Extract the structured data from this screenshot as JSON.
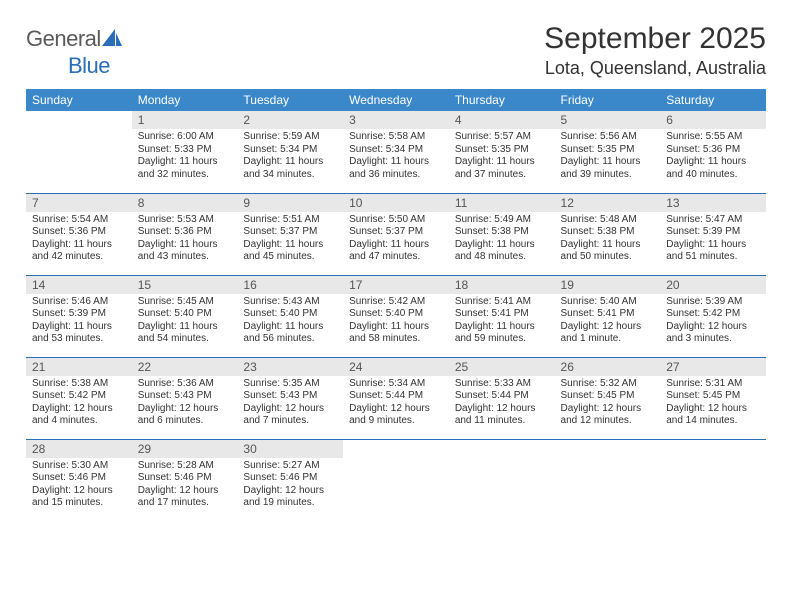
{
  "logo": {
    "textDark": "General",
    "textBlue": "Blue"
  },
  "title": "September 2025",
  "location": "Lota, Queensland, Australia",
  "colors": {
    "header_bg": "#3a87c9",
    "header_text": "#ffffff",
    "cell_border": "#2a6db8",
    "daynum_bg": "#e8e8e8",
    "logo_blue": "#2a6db8",
    "logo_gray": "#5a5a5a"
  },
  "weekdays": [
    "Sunday",
    "Monday",
    "Tuesday",
    "Wednesday",
    "Thursday",
    "Friday",
    "Saturday"
  ],
  "weeks": [
    [
      null,
      {
        "n": "1",
        "sr": "Sunrise: 6:00 AM",
        "ss": "Sunset: 5:33 PM",
        "dl1": "Daylight: 11 hours",
        "dl2": "and 32 minutes."
      },
      {
        "n": "2",
        "sr": "Sunrise: 5:59 AM",
        "ss": "Sunset: 5:34 PM",
        "dl1": "Daylight: 11 hours",
        "dl2": "and 34 minutes."
      },
      {
        "n": "3",
        "sr": "Sunrise: 5:58 AM",
        "ss": "Sunset: 5:34 PM",
        "dl1": "Daylight: 11 hours",
        "dl2": "and 36 minutes."
      },
      {
        "n": "4",
        "sr": "Sunrise: 5:57 AM",
        "ss": "Sunset: 5:35 PM",
        "dl1": "Daylight: 11 hours",
        "dl2": "and 37 minutes."
      },
      {
        "n": "5",
        "sr": "Sunrise: 5:56 AM",
        "ss": "Sunset: 5:35 PM",
        "dl1": "Daylight: 11 hours",
        "dl2": "and 39 minutes."
      },
      {
        "n": "6",
        "sr": "Sunrise: 5:55 AM",
        "ss": "Sunset: 5:36 PM",
        "dl1": "Daylight: 11 hours",
        "dl2": "and 40 minutes."
      }
    ],
    [
      {
        "n": "7",
        "sr": "Sunrise: 5:54 AM",
        "ss": "Sunset: 5:36 PM",
        "dl1": "Daylight: 11 hours",
        "dl2": "and 42 minutes."
      },
      {
        "n": "8",
        "sr": "Sunrise: 5:53 AM",
        "ss": "Sunset: 5:36 PM",
        "dl1": "Daylight: 11 hours",
        "dl2": "and 43 minutes."
      },
      {
        "n": "9",
        "sr": "Sunrise: 5:51 AM",
        "ss": "Sunset: 5:37 PM",
        "dl1": "Daylight: 11 hours",
        "dl2": "and 45 minutes."
      },
      {
        "n": "10",
        "sr": "Sunrise: 5:50 AM",
        "ss": "Sunset: 5:37 PM",
        "dl1": "Daylight: 11 hours",
        "dl2": "and 47 minutes."
      },
      {
        "n": "11",
        "sr": "Sunrise: 5:49 AM",
        "ss": "Sunset: 5:38 PM",
        "dl1": "Daylight: 11 hours",
        "dl2": "and 48 minutes."
      },
      {
        "n": "12",
        "sr": "Sunrise: 5:48 AM",
        "ss": "Sunset: 5:38 PM",
        "dl1": "Daylight: 11 hours",
        "dl2": "and 50 minutes."
      },
      {
        "n": "13",
        "sr": "Sunrise: 5:47 AM",
        "ss": "Sunset: 5:39 PM",
        "dl1": "Daylight: 11 hours",
        "dl2": "and 51 minutes."
      }
    ],
    [
      {
        "n": "14",
        "sr": "Sunrise: 5:46 AM",
        "ss": "Sunset: 5:39 PM",
        "dl1": "Daylight: 11 hours",
        "dl2": "and 53 minutes."
      },
      {
        "n": "15",
        "sr": "Sunrise: 5:45 AM",
        "ss": "Sunset: 5:40 PM",
        "dl1": "Daylight: 11 hours",
        "dl2": "and 54 minutes."
      },
      {
        "n": "16",
        "sr": "Sunrise: 5:43 AM",
        "ss": "Sunset: 5:40 PM",
        "dl1": "Daylight: 11 hours",
        "dl2": "and 56 minutes."
      },
      {
        "n": "17",
        "sr": "Sunrise: 5:42 AM",
        "ss": "Sunset: 5:40 PM",
        "dl1": "Daylight: 11 hours",
        "dl2": "and 58 minutes."
      },
      {
        "n": "18",
        "sr": "Sunrise: 5:41 AM",
        "ss": "Sunset: 5:41 PM",
        "dl1": "Daylight: 11 hours",
        "dl2": "and 59 minutes."
      },
      {
        "n": "19",
        "sr": "Sunrise: 5:40 AM",
        "ss": "Sunset: 5:41 PM",
        "dl1": "Daylight: 12 hours",
        "dl2": "and 1 minute."
      },
      {
        "n": "20",
        "sr": "Sunrise: 5:39 AM",
        "ss": "Sunset: 5:42 PM",
        "dl1": "Daylight: 12 hours",
        "dl2": "and 3 minutes."
      }
    ],
    [
      {
        "n": "21",
        "sr": "Sunrise: 5:38 AM",
        "ss": "Sunset: 5:42 PM",
        "dl1": "Daylight: 12 hours",
        "dl2": "and 4 minutes."
      },
      {
        "n": "22",
        "sr": "Sunrise: 5:36 AM",
        "ss": "Sunset: 5:43 PM",
        "dl1": "Daylight: 12 hours",
        "dl2": "and 6 minutes."
      },
      {
        "n": "23",
        "sr": "Sunrise: 5:35 AM",
        "ss": "Sunset: 5:43 PM",
        "dl1": "Daylight: 12 hours",
        "dl2": "and 7 minutes."
      },
      {
        "n": "24",
        "sr": "Sunrise: 5:34 AM",
        "ss": "Sunset: 5:44 PM",
        "dl1": "Daylight: 12 hours",
        "dl2": "and 9 minutes."
      },
      {
        "n": "25",
        "sr": "Sunrise: 5:33 AM",
        "ss": "Sunset: 5:44 PM",
        "dl1": "Daylight: 12 hours",
        "dl2": "and 11 minutes."
      },
      {
        "n": "26",
        "sr": "Sunrise: 5:32 AM",
        "ss": "Sunset: 5:45 PM",
        "dl1": "Daylight: 12 hours",
        "dl2": "and 12 minutes."
      },
      {
        "n": "27",
        "sr": "Sunrise: 5:31 AM",
        "ss": "Sunset: 5:45 PM",
        "dl1": "Daylight: 12 hours",
        "dl2": "and 14 minutes."
      }
    ],
    [
      {
        "n": "28",
        "sr": "Sunrise: 5:30 AM",
        "ss": "Sunset: 5:46 PM",
        "dl1": "Daylight: 12 hours",
        "dl2": "and 15 minutes."
      },
      {
        "n": "29",
        "sr": "Sunrise: 5:28 AM",
        "ss": "Sunset: 5:46 PM",
        "dl1": "Daylight: 12 hours",
        "dl2": "and 17 minutes."
      },
      {
        "n": "30",
        "sr": "Sunrise: 5:27 AM",
        "ss": "Sunset: 5:46 PM",
        "dl1": "Daylight: 12 hours",
        "dl2": "and 19 minutes."
      },
      null,
      null,
      null,
      null
    ]
  ]
}
